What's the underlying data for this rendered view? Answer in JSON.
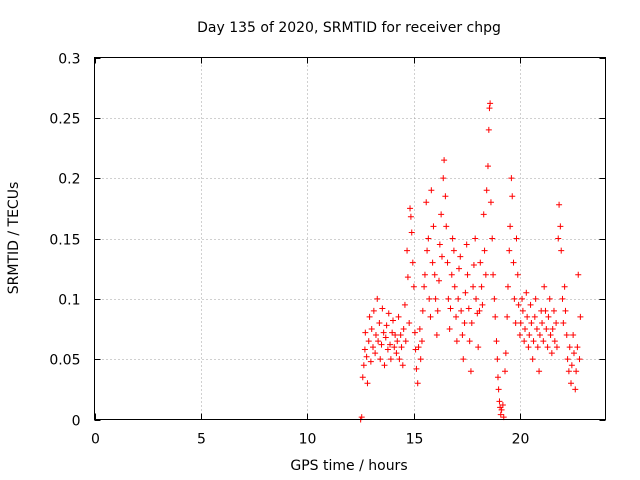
{
  "chart_data": {
    "type": "scatter",
    "title": "Day 135 of 2020, SRMTID for receiver chpg",
    "xlabel": "GPS time / hours",
    "ylabel": "SRMTID / TECUs",
    "xlim": [
      0,
      24
    ],
    "ylim": [
      0,
      0.3
    ],
    "xticks": [
      0,
      5,
      10,
      15,
      20
    ],
    "xtick_labels": [
      "0",
      "5",
      "10",
      "15",
      "20"
    ],
    "yticks": [
      0,
      0.05,
      0.1,
      0.15,
      0.2,
      0.25,
      0.3
    ],
    "ytick_labels": [
      "0",
      "0.05",
      "0.1",
      "0.15",
      "0.2",
      "0.25",
      "0.3"
    ],
    "grid": true,
    "marker": "+",
    "color": "#ff0000",
    "series": [
      {
        "name": "SRMTID",
        "points": [
          [
            12.5,
            0.0
          ],
          [
            12.55,
            0.002
          ],
          [
            12.6,
            0.035
          ],
          [
            12.65,
            0.045
          ],
          [
            12.7,
            0.058
          ],
          [
            12.72,
            0.072
          ],
          [
            12.78,
            0.052
          ],
          [
            12.82,
            0.03
          ],
          [
            12.88,
            0.065
          ],
          [
            12.92,
            0.085
          ],
          [
            12.98,
            0.048
          ],
          [
            13.02,
            0.075
          ],
          [
            13.08,
            0.06
          ],
          [
            13.12,
            0.09
          ],
          [
            13.18,
            0.055
          ],
          [
            13.22,
            0.07
          ],
          [
            13.28,
            0.1
          ],
          [
            13.32,
            0.065
          ],
          [
            13.38,
            0.08
          ],
          [
            13.42,
            0.05
          ],
          [
            13.48,
            0.062
          ],
          [
            13.52,
            0.092
          ],
          [
            13.58,
            0.072
          ],
          [
            13.62,
            0.045
          ],
          [
            13.68,
            0.068
          ],
          [
            13.72,
            0.078
          ],
          [
            13.78,
            0.058
          ],
          [
            13.82,
            0.088
          ],
          [
            13.88,
            0.062
          ],
          [
            13.92,
            0.05
          ],
          [
            13.98,
            0.072
          ],
          [
            14.02,
            0.082
          ],
          [
            14.08,
            0.06
          ],
          [
            14.12,
            0.07
          ],
          [
            14.18,
            0.055
          ],
          [
            14.22,
            0.065
          ],
          [
            14.28,
            0.085
          ],
          [
            14.32,
            0.05
          ],
          [
            14.38,
            0.07
          ],
          [
            14.42,
            0.06
          ],
          [
            14.48,
            0.045
          ],
          [
            14.52,
            0.075
          ],
          [
            14.58,
            0.095
          ],
          [
            14.62,
            0.065
          ],
          [
            14.68,
            0.14
          ],
          [
            14.72,
            0.118
          ],
          [
            14.78,
            0.08
          ],
          [
            14.82,
            0.175
          ],
          [
            14.86,
            0.168
          ],
          [
            14.9,
            0.155
          ],
          [
            14.95,
            0.13
          ],
          [
            15.0,
            0.11
          ],
          [
            15.05,
            0.072
          ],
          [
            15.08,
            0.058
          ],
          [
            15.12,
            0.042
          ],
          [
            15.18,
            0.03
          ],
          [
            15.22,
            0.06
          ],
          [
            15.28,
            0.075
          ],
          [
            15.32,
            0.05
          ],
          [
            15.38,
            0.065
          ],
          [
            15.42,
            0.09
          ],
          [
            15.48,
            0.11
          ],
          [
            15.52,
            0.12
          ],
          [
            15.58,
            0.18
          ],
          [
            15.62,
            0.14
          ],
          [
            15.68,
            0.15
          ],
          [
            15.72,
            0.1
          ],
          [
            15.78,
            0.085
          ],
          [
            15.82,
            0.19
          ],
          [
            15.88,
            0.13
          ],
          [
            15.92,
            0.16
          ],
          [
            15.98,
            0.12
          ],
          [
            16.02,
            0.1
          ],
          [
            16.08,
            0.07
          ],
          [
            16.12,
            0.09
          ],
          [
            16.18,
            0.115
          ],
          [
            16.22,
            0.145
          ],
          [
            16.28,
            0.17
          ],
          [
            16.32,
            0.135
          ],
          [
            16.38,
            0.2
          ],
          [
            16.42,
            0.215
          ],
          [
            16.48,
            0.185
          ],
          [
            16.52,
            0.16
          ],
          [
            16.58,
            0.13
          ],
          [
            16.62,
            0.1
          ],
          [
            16.68,
            0.075
          ],
          [
            16.72,
            0.092
          ],
          [
            16.78,
            0.12
          ],
          [
            16.82,
            0.15
          ],
          [
            16.88,
            0.14
          ],
          [
            16.92,
            0.11
          ],
          [
            16.98,
            0.085
          ],
          [
            17.02,
            0.065
          ],
          [
            17.08,
            0.1
          ],
          [
            17.12,
            0.125
          ],
          [
            17.18,
            0.135
          ],
          [
            17.22,
            0.09
          ],
          [
            17.28,
            0.07
          ],
          [
            17.32,
            0.05
          ],
          [
            17.38,
            0.08
          ],
          [
            17.42,
            0.105
          ],
          [
            17.48,
            0.145
          ],
          [
            17.52,
            0.12
          ],
          [
            17.58,
            0.092
          ],
          [
            17.62,
            0.065
          ],
          [
            17.68,
            0.04
          ],
          [
            17.72,
            0.08
          ],
          [
            17.78,
            0.11
          ],
          [
            17.82,
            0.128
          ],
          [
            17.88,
            0.15
          ],
          [
            17.92,
            0.1
          ],
          [
            17.98,
            0.088
          ],
          [
            18.02,
            0.06
          ],
          [
            18.08,
            0.09
          ],
          [
            18.12,
            0.13
          ],
          [
            18.18,
            0.11
          ],
          [
            18.22,
            0.095
          ],
          [
            18.28,
            0.17
          ],
          [
            18.32,
            0.14
          ],
          [
            18.38,
            0.12
          ],
          [
            18.42,
            0.19
          ],
          [
            18.48,
            0.21
          ],
          [
            18.52,
            0.24
          ],
          [
            18.55,
            0.258
          ],
          [
            18.58,
            0.262
          ],
          [
            18.62,
            0.18
          ],
          [
            18.68,
            0.15
          ],
          [
            18.72,
            0.12
          ],
          [
            18.78,
            0.1
          ],
          [
            18.82,
            0.085
          ],
          [
            18.88,
            0.065
          ],
          [
            18.92,
            0.05
          ],
          [
            18.95,
            0.035
          ],
          [
            18.98,
            0.025
          ],
          [
            19.02,
            0.015
          ],
          [
            19.05,
            0.01
          ],
          [
            19.08,
            0.004
          ],
          [
            19.12,
            0.008
          ],
          [
            19.18,
            0.012
          ],
          [
            19.22,
            0.002
          ],
          [
            19.28,
            0.04
          ],
          [
            19.32,
            0.055
          ],
          [
            19.38,
            0.085
          ],
          [
            19.42,
            0.11
          ],
          [
            19.48,
            0.14
          ],
          [
            19.52,
            0.16
          ],
          [
            19.58,
            0.2
          ],
          [
            19.62,
            0.185
          ],
          [
            19.68,
            0.13
          ],
          [
            19.72,
            0.1
          ],
          [
            19.78,
            0.08
          ],
          [
            19.82,
            0.15
          ],
          [
            19.88,
            0.12
          ],
          [
            19.92,
            0.095
          ],
          [
            19.98,
            0.07
          ],
          [
            20.02,
            0.08
          ],
          [
            20.08,
            0.1
          ],
          [
            20.12,
            0.09
          ],
          [
            20.18,
            0.065
          ],
          [
            20.22,
            0.075
          ],
          [
            20.28,
            0.105
          ],
          [
            20.32,
            0.085
          ],
          [
            20.38,
            0.06
          ],
          [
            20.42,
            0.07
          ],
          [
            20.48,
            0.095
          ],
          [
            20.52,
            0.08
          ],
          [
            20.58,
            0.05
          ],
          [
            20.62,
            0.065
          ],
          [
            20.68,
            0.085
          ],
          [
            20.72,
            0.1
          ],
          [
            20.78,
            0.075
          ],
          [
            20.82,
            0.06
          ],
          [
            20.88,
            0.04
          ],
          [
            20.92,
            0.07
          ],
          [
            20.98,
            0.09
          ],
          [
            21.02,
            0.08
          ],
          [
            21.08,
            0.065
          ],
          [
            21.12,
            0.11
          ],
          [
            21.18,
            0.09
          ],
          [
            21.22,
            0.075
          ],
          [
            21.28,
            0.06
          ],
          [
            21.32,
            0.085
          ],
          [
            21.38,
            0.1
          ],
          [
            21.42,
            0.07
          ],
          [
            21.48,
            0.055
          ],
          [
            21.52,
            0.075
          ],
          [
            21.58,
            0.09
          ],
          [
            21.62,
            0.065
          ],
          [
            21.68,
            0.08
          ],
          [
            21.72,
            0.06
          ],
          [
            21.78,
            0.15
          ],
          [
            21.82,
            0.178
          ],
          [
            21.88,
            0.16
          ],
          [
            21.92,
            0.14
          ],
          [
            21.98,
            0.1
          ],
          [
            22.02,
            0.08
          ],
          [
            22.08,
            0.11
          ],
          [
            22.12,
            0.09
          ],
          [
            22.18,
            0.07
          ],
          [
            22.22,
            0.05
          ],
          [
            22.28,
            0.04
          ],
          [
            22.32,
            0.06
          ],
          [
            22.38,
            0.03
          ],
          [
            22.42,
            0.045
          ],
          [
            22.48,
            0.07
          ],
          [
            22.52,
            0.055
          ],
          [
            22.58,
            0.025
          ],
          [
            22.62,
            0.04
          ],
          [
            22.68,
            0.06
          ],
          [
            22.72,
            0.12
          ],
          [
            22.78,
            0.05
          ],
          [
            22.82,
            0.085
          ]
        ]
      }
    ]
  }
}
